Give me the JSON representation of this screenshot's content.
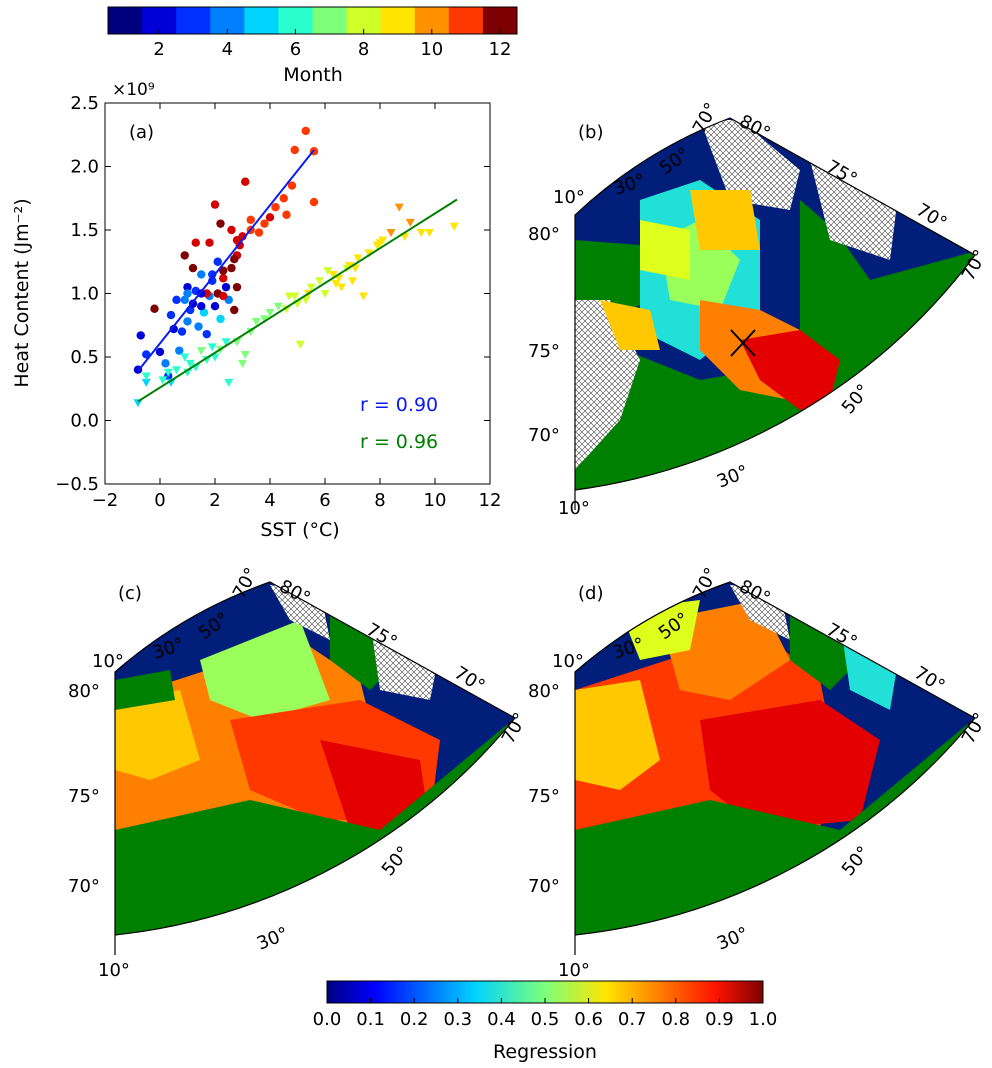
{
  "colors": {
    "jet": [
      "#00007f",
      "#0000c8",
      "#0010ff",
      "#0060ff",
      "#00aaff",
      "#1bffdd",
      "#5bff9b",
      "#9bff5b",
      "#ddff1b",
      "#ffc800",
      "#ff7f00",
      "#ff3800",
      "#e40000",
      "#7f0000"
    ],
    "land": "#007700",
    "ocean_edge": "#001e7a",
    "fit_a": "#0b1bf0",
    "fit_b": "#008000"
  },
  "month_bar": {
    "label": "Month",
    "ticks": [
      "2",
      "4",
      "6",
      "8",
      "10",
      "12"
    ],
    "tick_values": [
      2,
      4,
      6,
      8,
      10,
      12
    ],
    "range": [
      0.5,
      12.5
    ]
  },
  "regression_bar": {
    "label": "Regression",
    "ticks": [
      "0.0",
      "0.1",
      "0.2",
      "0.3",
      "0.4",
      "0.5",
      "0.6",
      "0.7",
      "0.8",
      "0.9",
      "1.0"
    ],
    "range": [
      0,
      1
    ]
  },
  "panels": {
    "a": "(a)",
    "b": "(b)",
    "c": "(c)",
    "d": "(d)"
  },
  "map_labels": {
    "meridians": [
      "10°",
      "30°",
      "50°",
      "70°",
      "80°"
    ],
    "parallels": [
      "80°",
      "75°",
      "70°"
    ],
    "east_meridians": [
      "75°",
      "70°",
      "70°",
      "50°",
      "30°"
    ],
    "corner": "10°"
  },
  "chart_data": {
    "type": "scatter",
    "title": "",
    "xlabel": "SST (°C)",
    "ylabel": "Heat Content (Jm⁻²)",
    "y_multiplier": "×10⁹",
    "xlim": [
      -2,
      12
    ],
    "ylim": [
      -0.5,
      2.5
    ],
    "xticks": [
      "−2",
      "0",
      "2",
      "4",
      "6",
      "8",
      "10",
      "12"
    ],
    "yticks": [
      "−0.5",
      "0.0",
      "0.5",
      "1.0",
      "1.5",
      "2.0",
      "2.5"
    ],
    "xtick_values": [
      -2,
      0,
      2,
      4,
      6,
      8,
      10,
      12
    ],
    "ytick_values": [
      -0.5,
      0,
      0.5,
      1,
      1.5,
      2,
      2.5
    ],
    "series": [
      {
        "marker": "circle",
        "points": [
          [
            -0.8,
            0.4
          ],
          [
            -0.7,
            0.67
          ],
          [
            -0.5,
            0.52
          ],
          [
            -0.2,
            0.88
          ],
          [
            0.0,
            0.54
          ],
          [
            0.2,
            0.45
          ],
          [
            0.3,
            0.35
          ],
          [
            0.4,
            0.83
          ],
          [
            0.5,
            0.72
          ],
          [
            0.7,
            0.55
          ],
          [
            0.8,
            0.7
          ],
          [
            0.9,
            0.95
          ],
          [
            1.0,
            1.05
          ],
          [
            1.0,
            0.78
          ],
          [
            1.1,
            0.87
          ],
          [
            1.2,
            0.92
          ],
          [
            1.3,
            1.02
          ],
          [
            1.4,
            0.74
          ],
          [
            1.5,
            1.15
          ],
          [
            1.6,
            0.85
          ],
          [
            1.7,
            0.68
          ],
          [
            1.8,
            0.98
          ],
          [
            1.9,
            1.1
          ],
          [
            2.0,
            0.9
          ],
          [
            2.1,
            1.25
          ],
          [
            2.2,
            0.8
          ],
          [
            2.4,
            1.05
          ],
          [
            2.5,
            0.95
          ],
          [
            0.9,
            1.3
          ],
          [
            1.2,
            1.2
          ],
          [
            1.7,
            1.0
          ],
          [
            2.3,
            1.12
          ],
          [
            2.8,
            1.3
          ],
          [
            3.0,
            1.45
          ],
          [
            2.6,
            1.2
          ],
          [
            1.5,
            1.0
          ],
          [
            1.8,
            1.4
          ],
          [
            2.0,
            1.7
          ],
          [
            2.2,
            1.55
          ],
          [
            2.9,
            1.38
          ],
          [
            3.1,
            1.88
          ],
          [
            3.3,
            1.5
          ],
          [
            3.8,
            1.55
          ],
          [
            4.0,
            1.6
          ],
          [
            4.2,
            1.68
          ],
          [
            4.5,
            1.75
          ],
          [
            4.6,
            1.62
          ],
          [
            4.8,
            1.85
          ],
          [
            4.9,
            2.13
          ],
          [
            5.3,
            2.28
          ],
          [
            5.6,
            2.12
          ],
          [
            5.6,
            1.72
          ],
          [
            2.7,
            1.27
          ],
          [
            2.3,
            1.18
          ],
          [
            1.5,
            0.9
          ],
          [
            2.6,
            1.5
          ],
          [
            2.8,
            1.42
          ],
          [
            3.3,
            1.58
          ],
          [
            3.6,
            1.48
          ],
          [
            1.9,
            1.15
          ],
          [
            2.1,
            1.0
          ],
          [
            0.6,
            0.95
          ],
          [
            2.3,
            0.98
          ],
          [
            2.8,
            1.05
          ],
          [
            2.7,
            0.87
          ],
          [
            1.3,
            1.4
          ],
          [
            1.0,
            1.0
          ]
        ],
        "months": [
          1,
          1,
          2,
          12,
          1,
          3,
          2,
          2,
          1,
          3,
          2,
          3,
          1,
          3,
          2,
          1,
          2,
          3,
          3,
          4,
          2,
          3,
          2,
          1,
          2,
          4,
          1,
          3,
          12,
          12,
          11,
          11,
          11,
          11,
          12,
          1,
          11,
          11,
          12,
          11,
          11,
          10,
          10,
          11,
          10,
          10,
          10,
          10,
          10,
          10,
          10,
          10,
          12,
          12,
          1,
          11,
          11,
          10,
          10,
          2,
          12,
          2,
          11,
          12,
          12,
          11,
          3
        ]
      },
      {
        "marker": "triangle",
        "points": [
          [
            -0.8,
            0.14
          ],
          [
            -0.5,
            0.3
          ],
          [
            -0.5,
            0.35
          ],
          [
            0.1,
            0.32
          ],
          [
            0.3,
            0.38
          ],
          [
            0.4,
            0.3
          ],
          [
            0.6,
            0.4
          ],
          [
            0.9,
            0.5
          ],
          [
            1.1,
            0.45
          ],
          [
            1.3,
            0.42
          ],
          [
            1.5,
            0.55
          ],
          [
            1.7,
            0.48
          ],
          [
            1.9,
            0.58
          ],
          [
            2.2,
            0.56
          ],
          [
            2.4,
            0.62
          ],
          [
            2.5,
            0.3
          ],
          [
            2.8,
            0.62
          ],
          [
            3.1,
            0.52
          ],
          [
            3.3,
            0.7
          ],
          [
            3.5,
            0.78
          ],
          [
            3.8,
            0.8
          ],
          [
            4.0,
            0.85
          ],
          [
            4.3,
            0.9
          ],
          [
            4.6,
            0.88
          ],
          [
            4.9,
            0.98
          ],
          [
            5.1,
            0.6
          ],
          [
            5.3,
            0.95
          ],
          [
            5.5,
            1.05
          ],
          [
            5.8,
            1.1
          ],
          [
            6.1,
            1.18
          ],
          [
            6.3,
            1.15
          ],
          [
            6.5,
            1.12
          ],
          [
            6.8,
            1.2
          ],
          [
            6.9,
            1.22
          ],
          [
            7.0,
            1.1
          ],
          [
            7.2,
            1.28
          ],
          [
            7.4,
            0.98
          ],
          [
            7.6,
            1.32
          ],
          [
            7.9,
            1.38
          ],
          [
            8.1,
            1.42
          ],
          [
            8.4,
            1.48
          ],
          [
            8.7,
            1.68
          ],
          [
            8.9,
            1.45
          ],
          [
            9.5,
            1.48
          ],
          [
            9.8,
            1.48
          ],
          [
            10.7,
            1.53
          ],
          [
            5.0,
            0.92
          ],
          [
            6.0,
            1.0
          ],
          [
            6.6,
            1.05
          ],
          [
            7.1,
            1.2
          ],
          [
            1.0,
            0.38
          ],
          [
            2.0,
            0.5
          ],
          [
            3.0,
            0.45
          ],
          [
            4.7,
            0.98
          ],
          [
            5.4,
            1.0
          ],
          [
            6.4,
            1.08
          ],
          [
            8.0,
            1.4
          ],
          [
            9.1,
            1.56
          ]
        ],
        "months": [
          4,
          4,
          5,
          5,
          5,
          4,
          5,
          5,
          5,
          5,
          6,
          5,
          5,
          6,
          5,
          5,
          6,
          6,
          6,
          6,
          6,
          6,
          6,
          7,
          7,
          7,
          7,
          7,
          7,
          7,
          8,
          8,
          7,
          8,
          8,
          8,
          8,
          8,
          8,
          8,
          9,
          9,
          8,
          8,
          8,
          8,
          7,
          7,
          8,
          8,
          5,
          5,
          6,
          7,
          8,
          8,
          8,
          9
        ]
      }
    ],
    "fits": [
      {
        "series_index": 0,
        "x": [
          -0.8,
          5.6
        ],
        "y": [
          0.39,
          2.13
        ],
        "label": "r = 0.90"
      },
      {
        "series_index": 1,
        "x": [
          -0.8,
          10.8
        ],
        "y": [
          0.15,
          1.74
        ],
        "label": "r = 0.96"
      }
    ]
  }
}
